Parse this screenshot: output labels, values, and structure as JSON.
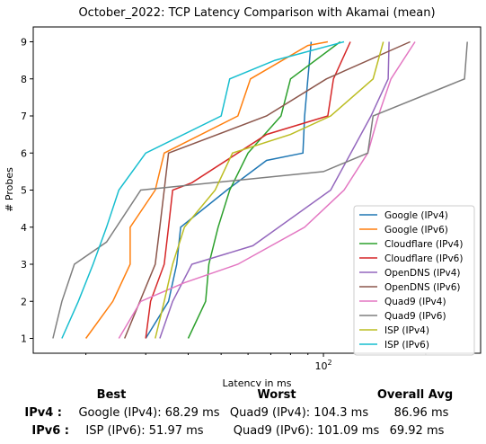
{
  "chart_data": {
    "type": "line",
    "title": "October_2022: TCP Latency Comparison with Akamai (mean)",
    "xlabel": "Latency in ms",
    "ylabel": "# Probes",
    "xscale": "log",
    "xlim": [
      14,
      290
    ],
    "ylim": [
      0.6,
      9.4
    ],
    "x_ticks": [
      {
        "value": 100,
        "label": "10^2"
      }
    ],
    "y_ticks": [
      1,
      2,
      3,
      4,
      5,
      6,
      7,
      8,
      9
    ],
    "legend_position": "lower-right",
    "series": [
      {
        "name": "Google (IPv4)",
        "color": "#1f77b4",
        "points": [
          [
            30,
            1
          ],
          [
            35,
            2
          ],
          [
            37,
            3
          ],
          [
            38,
            4
          ],
          [
            52,
            5
          ],
          [
            68,
            5.8
          ],
          [
            87,
            6
          ],
          [
            88,
            7
          ],
          [
            90,
            8
          ],
          [
            92,
            9
          ]
        ]
      },
      {
        "name": "Orange",
        "label": "Google (IPv6)",
        "color": "#ff7f0e",
        "points": [
          [
            20,
            1
          ],
          [
            24,
            2
          ],
          [
            27,
            3
          ],
          [
            27,
            4
          ],
          [
            32,
            5
          ],
          [
            34,
            6
          ],
          [
            56,
            7
          ],
          [
            61,
            8
          ],
          [
            90,
            8.9
          ],
          [
            103,
            9
          ]
        ]
      },
      {
        "name": "Cloudflare (IPv4)",
        "color": "#2ca02c",
        "points": [
          [
            40,
            1
          ],
          [
            45,
            2
          ],
          [
            46,
            3
          ],
          [
            49,
            4
          ],
          [
            53,
            5
          ],
          [
            60,
            6
          ],
          [
            75,
            7
          ],
          [
            80,
            8
          ],
          [
            112,
            9
          ]
        ]
      },
      {
        "name": "Cloudflare (IPv6)",
        "color": "#d62728",
        "points": [
          [
            30,
            1
          ],
          [
            31,
            2
          ],
          [
            34,
            3
          ],
          [
            35,
            4
          ],
          [
            36,
            5
          ],
          [
            41,
            5.2
          ],
          [
            68,
            6.5
          ],
          [
            103,
            7
          ],
          [
            107,
            8
          ],
          [
            120,
            9
          ]
        ]
      },
      {
        "name": "OpenDNS (IPv4)",
        "color": "#9467bd",
        "points": [
          [
            33,
            1
          ],
          [
            36,
            2
          ],
          [
            41,
            3
          ],
          [
            62,
            3.5
          ],
          [
            105,
            5
          ],
          [
            138,
            7
          ],
          [
            155,
            8
          ],
          [
            156,
            9
          ]
        ]
      },
      {
        "name": "OpenDNS (IPv6)",
        "color": "#8c564b",
        "points": [
          [
            26,
            1
          ],
          [
            32,
            3
          ],
          [
            33,
            4
          ],
          [
            34,
            5
          ],
          [
            35,
            6
          ],
          [
            68,
            7
          ],
          [
            102,
            8
          ],
          [
            180,
            9
          ]
        ]
      },
      {
        "name": "Quad9 (IPv4)",
        "color": "#e377c2",
        "points": [
          [
            25,
            1
          ],
          [
            29,
            2
          ],
          [
            39,
            2.5
          ],
          [
            56,
            3
          ],
          [
            88,
            4
          ],
          [
            115,
            5
          ],
          [
            135,
            6
          ],
          [
            145,
            7
          ],
          [
            158,
            8
          ],
          [
            186,
            9
          ]
        ]
      },
      {
        "name": "Quad9 (IPv6)",
        "color": "#7f7f7f",
        "points": [
          [
            16,
            1
          ],
          [
            17,
            2
          ],
          [
            18.5,
            3
          ],
          [
            23,
            3.6
          ],
          [
            29,
            5
          ],
          [
            100,
            5.5
          ],
          [
            135,
            6
          ],
          [
            140,
            7
          ],
          [
            230,
            7.8
          ],
          [
            260,
            8
          ],
          [
            265,
            9
          ]
        ]
      },
      {
        "name": "ISP (IPv4)",
        "color": "#bcbd22",
        "points": [
          [
            32,
            1
          ],
          [
            34,
            2
          ],
          [
            36,
            3
          ],
          [
            39,
            4
          ],
          [
            48,
            5
          ],
          [
            54,
            6
          ],
          [
            80,
            6.5
          ],
          [
            105,
            7
          ],
          [
            140,
            8
          ],
          [
            150,
            9
          ]
        ]
      },
      {
        "name": "ISP (IPv6)",
        "color": "#17becf",
        "points": [
          [
            17,
            1
          ],
          [
            19,
            2
          ],
          [
            21,
            3
          ],
          [
            23,
            4
          ],
          [
            25,
            5
          ],
          [
            30,
            6
          ],
          [
            50,
            7
          ],
          [
            53,
            8
          ],
          [
            72,
            8.5
          ],
          [
            115,
            9
          ]
        ]
      }
    ]
  },
  "summary": {
    "headers": {
      "best": "Best",
      "worst": "Worst",
      "avg": "Overall Avg"
    },
    "rows": [
      {
        "label": "IPv4 :",
        "best": "Google (IPv4): 68.29 ms",
        "worst": "Quad9 (IPv4): 104.3 ms",
        "avg": "86.96 ms"
      },
      {
        "label": "IPv6 :",
        "best": "ISP (IPv6): 51.97 ms",
        "worst": "Quad9 (IPv6): 101.09 ms",
        "avg": "69.92 ms"
      }
    ]
  }
}
